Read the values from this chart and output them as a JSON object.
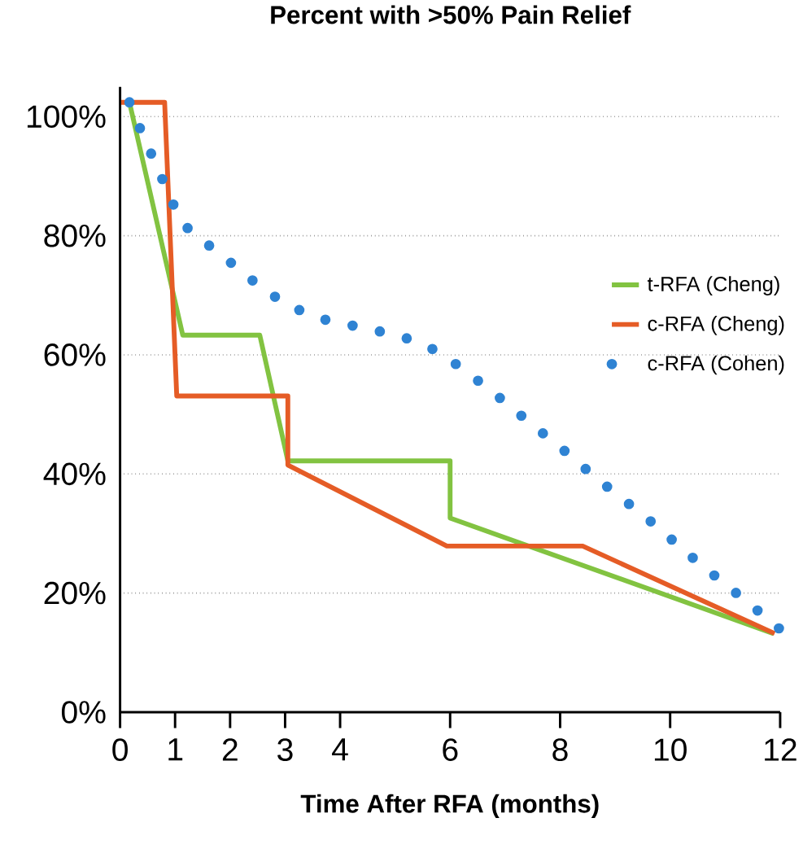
{
  "chart_data": {
    "type": "line",
    "title": "Percent with >50% Pain Relief",
    "xlabel": "Time After RFA (months)",
    "xlim": [
      0,
      12
    ],
    "xticks": [
      0,
      1,
      2,
      3,
      4,
      6,
      8,
      10,
      12
    ],
    "ylim": [
      0,
      105
    ],
    "yticks": [
      {
        "value": 0,
        "label": "0%"
      },
      {
        "value": 20,
        "label": "20%"
      },
      {
        "value": 40,
        "label": "40%"
      },
      {
        "value": 60,
        "label": "60%"
      },
      {
        "value": 80,
        "label": "80%"
      },
      {
        "value": 100,
        "label": "100%"
      }
    ],
    "grid": "y",
    "legend": "right",
    "series": [
      {
        "name": "t-RFA (Cheng)",
        "color": "#82c341",
        "line_style": "solid",
        "x": [
          0.17,
          1.14,
          2.54,
          3.05,
          6.0,
          6.0,
          11.88
        ],
        "values": [
          102.4,
          63.3,
          63.3,
          42.2,
          42.2,
          32.6,
          13.2
        ]
      },
      {
        "name": "c-RFA (Cheng)",
        "color": "#e55c26",
        "line_style": "solid",
        "x": [
          0.02,
          0.81,
          1.03,
          3.05,
          3.05,
          5.94,
          8.41,
          11.9
        ],
        "values": [
          102.4,
          102.4,
          53.1,
          53.1,
          41.5,
          27.9,
          27.9,
          13.2
        ]
      },
      {
        "name": "c-RFA (Cohen)",
        "color": "#2f83d3",
        "line_style": "dotted",
        "x": [
          0.17,
          0.32,
          0.43,
          0.58,
          0.71,
          0.84,
          0.97,
          1.1,
          1.34,
          1.6,
          1.85,
          2.11,
          2.6,
          3.12,
          3.76,
          4.44,
          5.09,
          5.62,
          5.95,
          6.46,
          6.98,
          7.46,
          8.0,
          8.48,
          9.02,
          9.5,
          10.0,
          10.5,
          11.0,
          11.48,
          12.0
        ],
        "values": [
          102.4,
          99.1,
          96.3,
          93.5,
          90.7,
          88.0,
          85.2,
          82.5,
          80.2,
          78.5,
          76.6,
          74.8,
          71.0,
          68.0,
          65.8,
          64.5,
          63.2,
          61.3,
          59.5,
          56.0,
          52.2,
          48.5,
          44.5,
          40.7,
          36.6,
          33.2,
          29.2,
          25.2,
          21.5,
          17.9,
          13.9
        ]
      }
    ]
  }
}
